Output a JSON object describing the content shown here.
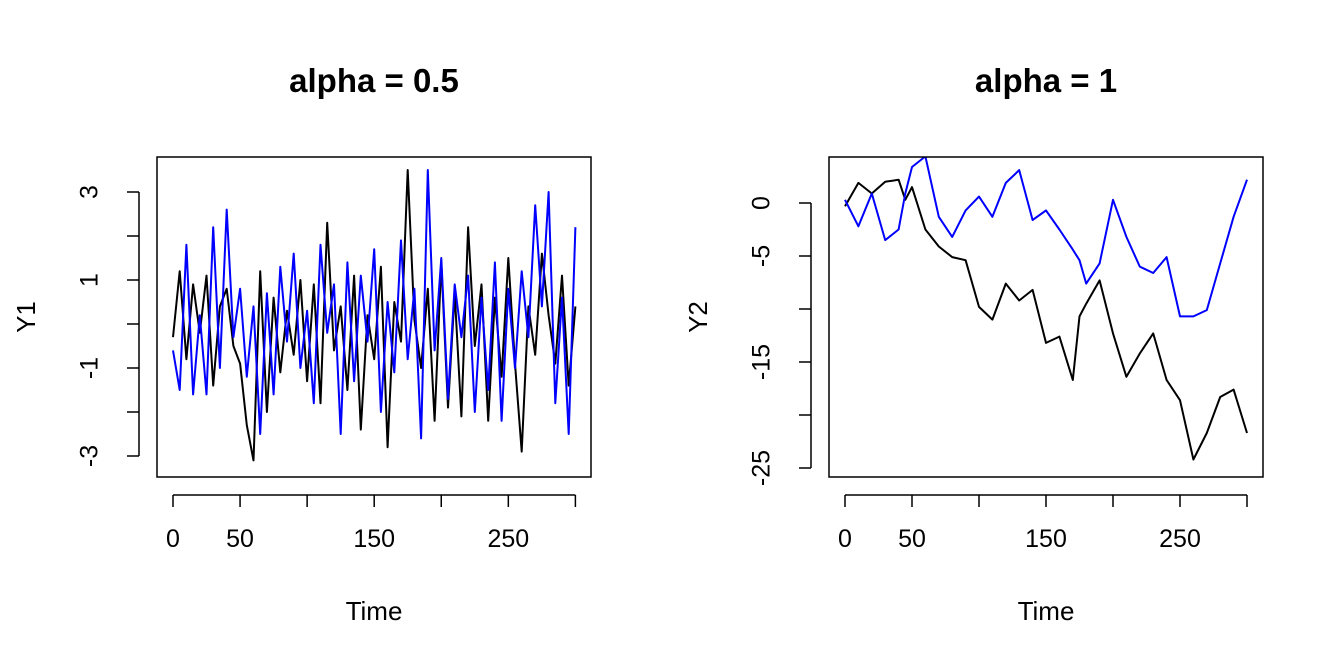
{
  "chart_data": [
    {
      "type": "line",
      "title": "alpha = 0.5",
      "xlabel": "Time",
      "ylabel": "Y1",
      "xlim": [
        0,
        300
      ],
      "ylim": [
        -3.2,
        3.5
      ],
      "xticks": [
        0,
        50,
        100,
        150,
        200,
        250,
        300
      ],
      "xtick_labels": [
        "0",
        "50",
        "",
        "150",
        "",
        "250",
        ""
      ],
      "yticks": [
        -3,
        -2,
        -1,
        0,
        1,
        2,
        3
      ],
      "ytick_labels": [
        "-3",
        "",
        "-1",
        "",
        "1",
        "",
        "3"
      ],
      "x_step": 5,
      "series": [
        {
          "name": "black",
          "color": "#000000",
          "values": [
            -0.3,
            1.2,
            -0.8,
            0.9,
            -0.2,
            1.1,
            -1.4,
            0.4,
            0.8,
            -0.5,
            -0.9,
            -2.3,
            -3.1,
            1.2,
            -2.0,
            0.6,
            -1.1,
            0.3,
            -0.7,
            1.0,
            -1.3,
            0.9,
            -1.8,
            2.3,
            -0.6,
            0.4,
            -1.5,
            1.1,
            -2.4,
            0.2,
            -0.8,
            1.3,
            -2.8,
            0.5,
            -0.4,
            3.5,
            0.1,
            -1.0,
            0.8,
            -2.2,
            1.4,
            -1.9,
            0.7,
            -2.1,
            2.2,
            -0.5,
            0.9,
            -2.2,
            0.6,
            -1.2,
            1.5,
            -0.9,
            -2.9,
            0.4,
            -0.7,
            1.6,
            0.2,
            -0.9,
            1.1,
            -1.4,
            0.4
          ]
        },
        {
          "name": "blue",
          "color": "#0000ff",
          "values": [
            -0.6,
            -1.5,
            1.8,
            -1.6,
            0.2,
            -1.6,
            2.2,
            -1.0,
            2.6,
            -0.3,
            0.8,
            -1.2,
            0.4,
            -2.5,
            0.7,
            -1.6,
            1.3,
            -0.4,
            1.6,
            -1.0,
            0.3,
            -1.8,
            1.8,
            -0.2,
            0.9,
            -2.5,
            1.4,
            -1.3,
            1.1,
            -0.4,
            1.7,
            -2.0,
            0.5,
            -1.1,
            1.9,
            -0.8,
            0.8,
            -2.6,
            3.5,
            -0.6,
            1.5,
            -1.7,
            0.9,
            -0.3,
            1.1,
            -2.0,
            0.6,
            -1.5,
            1.4,
            -2.2,
            0.8,
            -1.0,
            1.2,
            -0.3,
            2.7,
            0.4,
            3.0,
            -1.8,
            0.6,
            -2.5,
            2.2
          ]
        }
      ]
    },
    {
      "type": "line",
      "title": "alpha = 1",
      "xlabel": "Time",
      "ylabel": "Y2",
      "xlim": [
        0,
        300
      ],
      "ylim": [
        -25,
        4.4
      ],
      "xticks": [
        0,
        50,
        100,
        150,
        200,
        250,
        300
      ],
      "xtick_labels": [
        "0",
        "50",
        "",
        "150",
        "",
        "250",
        ""
      ],
      "yticks": [
        -25,
        -20,
        -15,
        -10,
        -5,
        0
      ],
      "ytick_labels": [
        "-25",
        "",
        "-15",
        "",
        "-5",
        "0"
      ],
      "x": [
        0,
        10,
        20,
        30,
        40,
        45,
        50,
        60,
        70,
        80,
        90,
        100,
        110,
        120,
        130,
        140,
        150,
        160,
        170,
        175,
        180,
        190,
        200,
        210,
        220,
        230,
        240,
        250,
        260,
        270,
        280,
        290,
        300
      ],
      "series": [
        {
          "name": "black",
          "color": "#000000",
          "values": [
            -0.3,
            1.9,
            0.9,
            2.0,
            2.2,
            0.3,
            1.5,
            -2.5,
            -4.1,
            -5.1,
            -5.4,
            -9.8,
            -11.0,
            -7.6,
            -9.2,
            -8.2,
            -13.2,
            -12.6,
            -16.7,
            -10.7,
            -9.5,
            -7.3,
            -12.3,
            -16.4,
            -14.2,
            -12.3,
            -16.7,
            -18.6,
            -24.2,
            -21.7,
            -18.3,
            -17.6,
            -21.7
          ]
        },
        {
          "name": "blue",
          "color": "#0000ff",
          "values": [
            0.3,
            -2.2,
            0.9,
            -3.5,
            -2.5,
            0.9,
            3.4,
            4.4,
            -1.3,
            -3.2,
            -0.7,
            0.6,
            -1.3,
            1.9,
            3.1,
            -1.6,
            -0.7,
            -2.5,
            -4.4,
            -5.4,
            -7.6,
            -5.7,
            0.3,
            -3.2,
            -6.0,
            -6.6,
            -5.1,
            -10.7,
            -10.7,
            -10.1,
            -5.7,
            -1.3,
            2.2
          ]
        }
      ]
    }
  ]
}
